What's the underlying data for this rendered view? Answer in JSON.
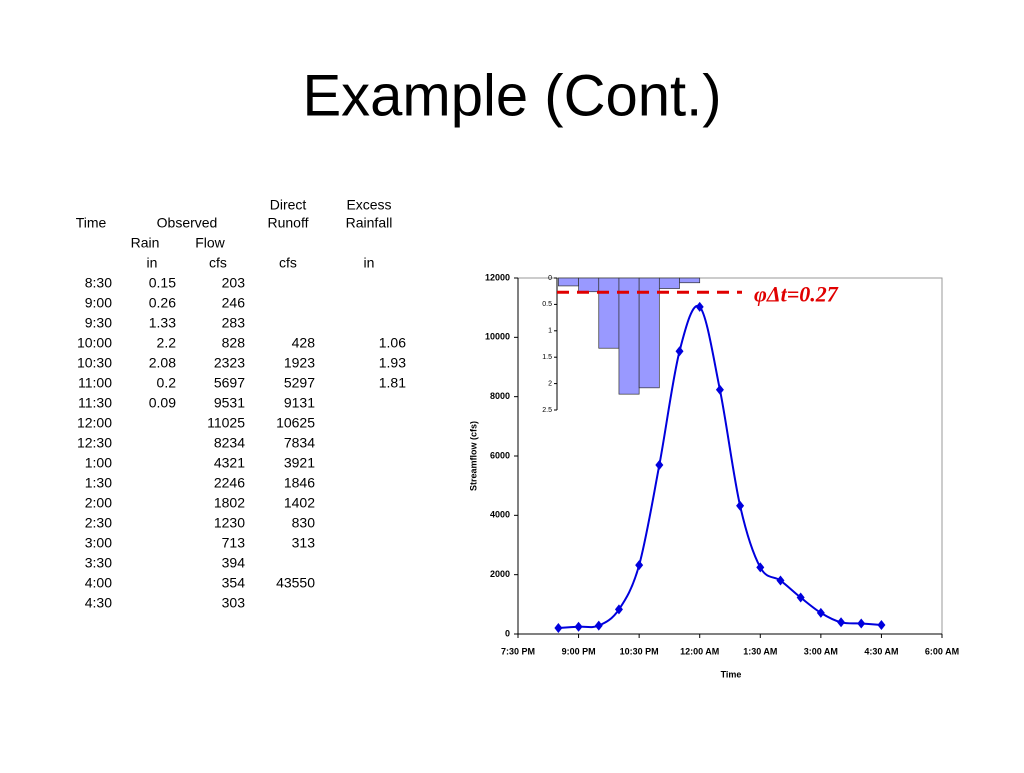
{
  "title": "Example (Cont.)",
  "table": {
    "head": {
      "time": "Time",
      "observed": "Observed",
      "rain": "Rain",
      "flow": "Flow",
      "direct": [
        "Direct",
        "Runoff"
      ],
      "excess": [
        "Excess",
        "Rainfall"
      ],
      "units": [
        "in",
        "cfs",
        "cfs",
        "in"
      ]
    },
    "rows": [
      [
        "8:30",
        0.15,
        203,
        null,
        null
      ],
      [
        "9:00",
        0.26,
        246,
        null,
        null
      ],
      [
        "9:30",
        1.33,
        283,
        null,
        null
      ],
      [
        "10:00",
        2.2,
        828,
        428,
        1.06
      ],
      [
        "10:30",
        2.08,
        2323,
        1923,
        1.93
      ],
      [
        "11:00",
        0.2,
        5697,
        5297,
        1.81
      ],
      [
        "11:30",
        0.09,
        9531,
        9131,
        null
      ],
      [
        "12:00",
        null,
        11025,
        10625,
        null
      ],
      [
        "12:30",
        null,
        8234,
        7834,
        null
      ],
      [
        "1:00",
        null,
        4321,
        3921,
        null
      ],
      [
        "1:30",
        null,
        2246,
        1846,
        null
      ],
      [
        "2:00",
        null,
        1802,
        1402,
        null
      ],
      [
        "2:30",
        null,
        1230,
        830,
        null
      ],
      [
        "3:00",
        null,
        713,
        313,
        null
      ],
      [
        "3:30",
        null,
        394,
        null,
        null
      ],
      [
        "4:00",
        null,
        354,
        43550,
        null
      ],
      [
        "4:30",
        null,
        303,
        null,
        null
      ]
    ]
  },
  "chart_data": {
    "type": "line",
    "x_label": "Time",
    "y_label": "Streamflow (cfs)",
    "x": [
      20.5,
      21,
      21.5,
      22,
      22.5,
      23,
      23.5,
      24,
      24.5,
      25,
      25.5,
      26,
      26.5,
      27,
      27.5,
      28,
      28.5
    ],
    "xlim": [
      19.5,
      30
    ],
    "xticks": [
      {
        "value": 19.5,
        "label": "7:30 PM"
      },
      {
        "value": 21,
        "label": "9:00 PM"
      },
      {
        "value": 22.5,
        "label": "10:30 PM"
      },
      {
        "value": 24,
        "label": "12:00 AM"
      },
      {
        "value": 25.5,
        "label": "1:30 AM"
      },
      {
        "value": 27,
        "label": "3:00 AM"
      },
      {
        "value": 28.5,
        "label": "4:30 AM"
      },
      {
        "value": 30,
        "label": "6:00 AM"
      }
    ],
    "ylim": [
      0,
      12000
    ],
    "yticks": [
      0,
      2000,
      4000,
      6000,
      8000,
      10000,
      12000
    ],
    "y2lim": [
      0,
      2.5
    ],
    "y2_inverted": true,
    "y2ticks": [
      0,
      0.5,
      1,
      1.5,
      2,
      2.5
    ],
    "series": [
      {
        "color": "#0000dd",
        "values": [
          203,
          246,
          283,
          828,
          2323,
          5697,
          9531,
          11025,
          8234,
          4321,
          2246,
          1802,
          1230,
          713,
          394,
          354,
          303
        ]
      },
      {
        "type": "bar",
        "axis": "y2",
        "color": "#9999ff",
        "x": [
          20.5,
          21,
          21.5,
          22,
          22.5,
          23,
          23.5
        ],
        "values": [
          0.15,
          0.26,
          1.33,
          2.2,
          2.08,
          0.2,
          0.09
        ]
      }
    ],
    "threshold": {
      "value": 0.27,
      "label": "φΔt=0.27",
      "color": "#e00000",
      "axis": "y2"
    }
  }
}
